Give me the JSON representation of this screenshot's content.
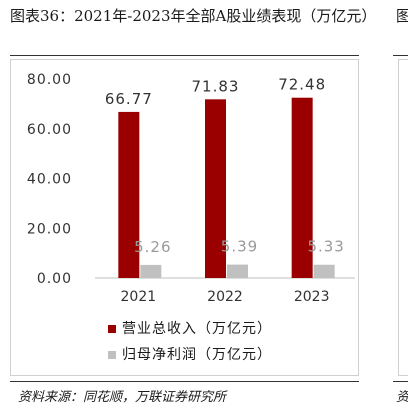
{
  "page": {
    "title": "图表36：2021年-2023年全部A股业绩表现（万亿元）",
    "right_cut_title": "图",
    "source": "资料来源：同花顺，万联证券研究所",
    "right_cut_source": "资"
  },
  "colors": {
    "revenue": "#9b0000",
    "profit": "#c0c0c0"
  },
  "chart_data": {
    "type": "bar",
    "categories": [
      "2021",
      "2022",
      "2023"
    ],
    "series": [
      {
        "name": "营业总收入（万亿元）",
        "values": [
          66.77,
          71.83,
          72.48
        ],
        "labels": [
          "66.77",
          "71.83",
          "72.48"
        ]
      },
      {
        "name": "归母净利润（万亿元）",
        "values": [
          5.26,
          5.39,
          5.33
        ],
        "labels": [
          "5.26",
          "5.39",
          "5.33"
        ]
      }
    ],
    "yticks": [
      "0.00",
      "20.00",
      "40.00",
      "60.00",
      "80.00"
    ],
    "ylim": [
      0,
      80
    ],
    "grid": false,
    "legend": "bottom"
  }
}
